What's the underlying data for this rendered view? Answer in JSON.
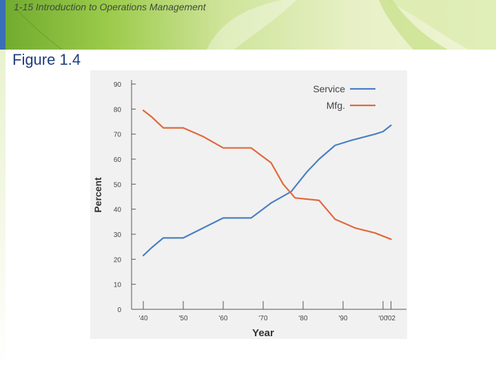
{
  "header": {
    "title": "1-15   Introduction to Operations Management"
  },
  "figure_label": "Figure 1.4",
  "colors": {
    "service": "#4a7fc1",
    "mfg": "#e0683a"
  },
  "chart_data": {
    "type": "line",
    "title": "",
    "xlabel": "Year",
    "ylabel": "Percent",
    "xlim": [
      1940,
      2002
    ],
    "ylim": [
      0,
      90
    ],
    "grid": false,
    "legend_position": "top-right",
    "y_ticks": [
      0,
      10,
      20,
      30,
      40,
      50,
      60,
      70,
      80,
      90
    ],
    "x_ticks": [
      {
        "value": 1940,
        "label": "'40"
      },
      {
        "value": 1950,
        "label": "'50"
      },
      {
        "value": 1960,
        "label": "'60"
      },
      {
        "value": 1970,
        "label": "'70"
      },
      {
        "value": 1980,
        "label": "'80"
      },
      {
        "value": 1990,
        "label": "'90"
      },
      {
        "value": 2000,
        "label": "'00"
      },
      {
        "value": 2002,
        "label": "'02"
      }
    ],
    "series": [
      {
        "name": "Service",
        "color": "#4a7fc1",
        "points": [
          [
            1940,
            21.5
          ],
          [
            1942,
            24.5
          ],
          [
            1945,
            28.5
          ],
          [
            1950,
            28.5
          ],
          [
            1955,
            32.5
          ],
          [
            1960,
            36.5
          ],
          [
            1967,
            36.5
          ],
          [
            1972,
            42.5
          ],
          [
            1977,
            47
          ],
          [
            1981,
            55
          ],
          [
            1984,
            60
          ],
          [
            1988,
            65.5
          ],
          [
            1992,
            67.5
          ],
          [
            1998,
            70
          ],
          [
            2000,
            71
          ],
          [
            2002,
            73.5
          ]
        ]
      },
      {
        "name": "Mfg.",
        "color": "#e0683a",
        "points": [
          [
            1940,
            79.5
          ],
          [
            1942,
            77
          ],
          [
            1945,
            72.5
          ],
          [
            1950,
            72.5
          ],
          [
            1955,
            69
          ],
          [
            1960,
            64.5
          ],
          [
            1967,
            64.5
          ],
          [
            1972,
            58.5
          ],
          [
            1975,
            50
          ],
          [
            1978,
            44.5
          ],
          [
            1984,
            43.5
          ],
          [
            1988,
            36
          ],
          [
            1993,
            32.5
          ],
          [
            1998,
            30.5
          ],
          [
            2002,
            28
          ]
        ]
      }
    ]
  }
}
